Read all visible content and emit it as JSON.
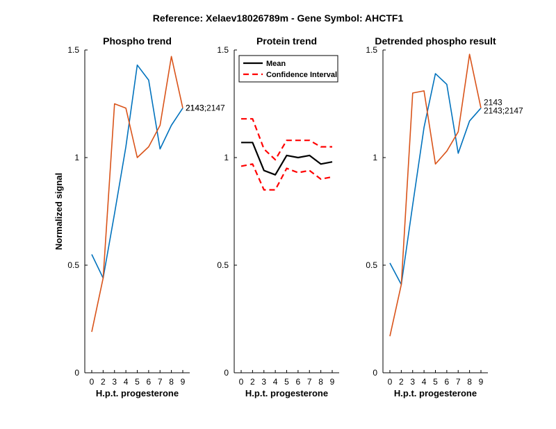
{
  "figure": {
    "suptitle": "Reference:  Xelaev18026789m - Gene Symbol:  AHCTF1"
  },
  "chart_data": [
    {
      "type": "line",
      "title": "Phospho trend",
      "xlabel": "H.p.t. progesterone",
      "ylabel": "Normalized signal",
      "x": [
        0,
        2,
        3,
        4,
        5,
        6,
        7,
        8,
        9
      ],
      "xticks": [
        "0",
        "2",
        "3",
        "4",
        "5",
        "6",
        "7",
        "8",
        "9"
      ],
      "ylim": [
        0,
        1.5
      ],
      "yticks": [
        "0",
        "0.5",
        "1",
        "1.5"
      ],
      "grid": false,
      "series": [
        {
          "color": "#0072BD",
          "values": [
            0.55,
            0.44,
            0.74,
            1.05,
            1.43,
            1.36,
            1.04,
            1.15,
            1.23
          ]
        },
        {
          "color": "#D95319",
          "values": [
            0.19,
            0.44,
            1.25,
            1.23,
            1.0,
            1.05,
            1.15,
            1.47,
            1.23
          ]
        }
      ],
      "annotations": [
        "2143",
        "2143;2147"
      ]
    },
    {
      "type": "line",
      "title": "Protein trend",
      "xlabel": "H.p.t. progesterone",
      "ylabel": "",
      "x": [
        0,
        2,
        3,
        4,
        5,
        6,
        7,
        8,
        9
      ],
      "xticks": [
        "0",
        "2",
        "3",
        "4",
        "5",
        "6",
        "7",
        "8",
        "9"
      ],
      "ylim": [
        0,
        1.5
      ],
      "yticks": [
        "0",
        "0.5",
        "1",
        "1.5"
      ],
      "grid": false,
      "legend_position": "top-left",
      "series": [
        {
          "name": "Mean",
          "color": "#000000",
          "style": "solid",
          "values": [
            1.07,
            1.07,
            0.94,
            0.92,
            1.01,
            1.0,
            1.01,
            0.97,
            0.98
          ]
        },
        {
          "name": "Confidence Interval",
          "color": "#FF0000",
          "style": "dashed",
          "values": [
            1.18,
            1.18,
            1.04,
            0.99,
            1.08,
            1.08,
            1.08,
            1.05,
            1.05
          ]
        },
        {
          "color": "#FF0000",
          "style": "dashed",
          "values": [
            0.96,
            0.97,
            0.85,
            0.85,
            0.95,
            0.93,
            0.94,
            0.9,
            0.91
          ]
        }
      ]
    },
    {
      "type": "line",
      "title": "Detrended phospho result",
      "xlabel": "H.p.t. progesterone",
      "ylabel": "",
      "x": [
        0,
        2,
        3,
        4,
        5,
        6,
        7,
        8,
        9
      ],
      "xticks": [
        "0",
        "2",
        "3",
        "4",
        "5",
        "6",
        "7",
        "8",
        "9"
      ],
      "ylim": [
        0,
        1.5
      ],
      "yticks": [
        "0",
        "0.5",
        "1",
        "1.5"
      ],
      "grid": false,
      "series": [
        {
          "color": "#0072BD",
          "values": [
            0.51,
            0.41,
            0.78,
            1.14,
            1.39,
            1.34,
            1.02,
            1.17,
            1.23
          ]
        },
        {
          "color": "#D95319",
          "values": [
            0.17,
            0.41,
            1.3,
            1.31,
            0.97,
            1.03,
            1.12,
            1.48,
            1.23
          ]
        }
      ],
      "annotations": [
        "2143",
        "2143;2147"
      ]
    }
  ]
}
